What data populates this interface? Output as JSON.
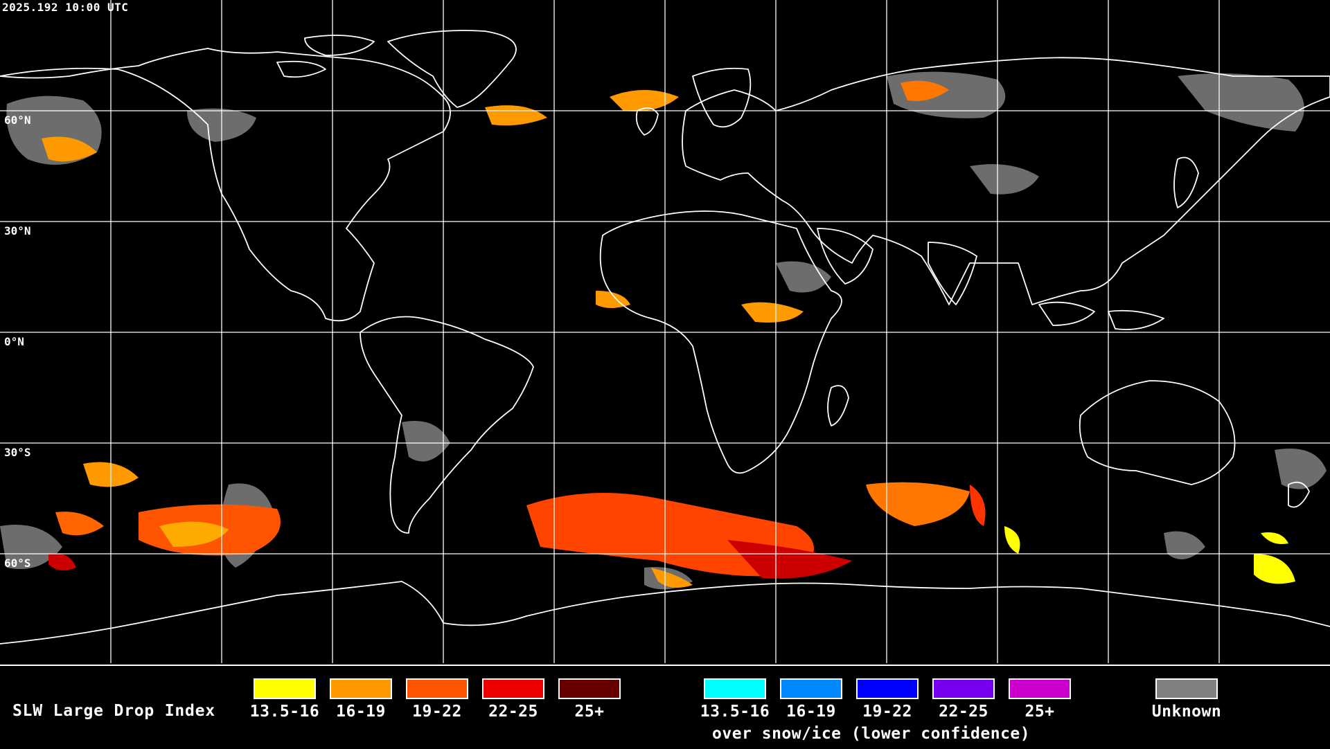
{
  "timestamp": "2025.192 10:00 UTC",
  "latitude_labels": [
    "60°N",
    "30°N",
    "0°N",
    "30°S",
    "60°S"
  ],
  "legend": {
    "title": "SLW Large Drop Index",
    "main_scale": [
      {
        "label": "13.5-16",
        "color": "#ffff00"
      },
      {
        "label": "16-19",
        "color": "#ff9900"
      },
      {
        "label": "19-22",
        "color": "#ff5500"
      },
      {
        "label": "22-25",
        "color": "#ee0000"
      },
      {
        "label": "25+",
        "color": "#660000"
      }
    ],
    "snow_scale": [
      {
        "label": "13.5-16",
        "color": "#00ffff"
      },
      {
        "label": "16-19",
        "color": "#0088ff"
      },
      {
        "label": "19-22",
        "color": "#0000ff"
      },
      {
        "label": "22-25",
        "color": "#7700ee"
      },
      {
        "label": "25+",
        "color": "#cc00cc"
      }
    ],
    "snow_note": "over snow/ice (lower confidence)",
    "unknown": {
      "label": "Unknown",
      "color": "#808080"
    }
  }
}
